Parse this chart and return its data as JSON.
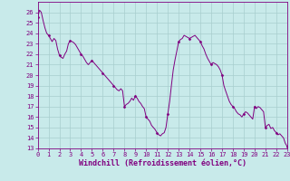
{
  "x": [
    0,
    0.17,
    0.33,
    0.5,
    0.67,
    0.83,
    1,
    1.17,
    1.33,
    1.5,
    1.67,
    1.83,
    2,
    2.17,
    2.33,
    2.5,
    2.67,
    2.83,
    3,
    3.17,
    3.33,
    3.5,
    3.67,
    3.83,
    4,
    4.17,
    4.33,
    4.5,
    4.67,
    4.83,
    5,
    5.17,
    5.33,
    5.5,
    5.67,
    5.83,
    6,
    6.17,
    6.33,
    6.5,
    6.67,
    6.83,
    7,
    7.17,
    7.33,
    7.5,
    7.67,
    7.83,
    8,
    8.17,
    8.33,
    8.5,
    8.67,
    8.83,
    9,
    9.17,
    9.33,
    9.5,
    9.67,
    9.83,
    10,
    10.17,
    10.33,
    10.5,
    10.67,
    10.83,
    11,
    11.17,
    11.33,
    11.5,
    11.67,
    11.83,
    12,
    12.17,
    12.33,
    12.5,
    12.67,
    12.83,
    13,
    13.17,
    13.33,
    13.5,
    13.67,
    13.83,
    14,
    14.17,
    14.33,
    14.5,
    14.67,
    14.83,
    15,
    15.17,
    15.33,
    15.5,
    15.67,
    15.83,
    16,
    16.17,
    16.33,
    16.5,
    16.67,
    16.83,
    17,
    17.17,
    17.33,
    17.5,
    17.67,
    17.83,
    18,
    18.17,
    18.33,
    18.5,
    18.67,
    18.83,
    19,
    19.17,
    19.33,
    19.5,
    19.67,
    19.83,
    20,
    20.17,
    20.33,
    20.5,
    20.67,
    20.83,
    21,
    21.17,
    21.33,
    21.5,
    21.67,
    21.83,
    22,
    22.17,
    22.33,
    22.5,
    22.67,
    22.83,
    23
  ],
  "y": [
    25.5,
    26.2,
    26.0,
    25.2,
    24.5,
    24.0,
    23.8,
    23.5,
    23.2,
    23.5,
    23.3,
    22.5,
    21.9,
    21.7,
    21.6,
    22.0,
    22.3,
    23.0,
    23.3,
    23.2,
    23.1,
    22.9,
    22.6,
    22.3,
    22.0,
    21.8,
    21.5,
    21.2,
    21.0,
    21.2,
    21.4,
    21.2,
    21.0,
    20.8,
    20.6,
    20.4,
    20.2,
    20.0,
    19.8,
    19.6,
    19.4,
    19.2,
    19.0,
    18.8,
    18.6,
    18.5,
    18.7,
    18.5,
    17.0,
    17.2,
    17.3,
    17.5,
    17.8,
    17.6,
    18.0,
    17.8,
    17.5,
    17.3,
    17.0,
    16.8,
    16.0,
    15.8,
    15.6,
    15.2,
    15.0,
    14.8,
    14.5,
    14.3,
    14.2,
    14.4,
    14.5,
    15.0,
    16.3,
    17.5,
    19.0,
    20.5,
    21.5,
    22.3,
    23.2,
    23.4,
    23.5,
    23.8,
    23.7,
    23.6,
    23.5,
    23.6,
    23.7,
    23.8,
    23.6,
    23.4,
    23.2,
    22.8,
    22.5,
    22.0,
    21.6,
    21.3,
    21.0,
    21.2,
    21.1,
    21.0,
    20.8,
    20.5,
    20.0,
    19.0,
    18.5,
    18.0,
    17.5,
    17.2,
    17.0,
    16.8,
    16.5,
    16.3,
    16.2,
    16.0,
    16.3,
    16.5,
    16.4,
    16.2,
    16.0,
    15.8,
    17.0,
    16.8,
    17.0,
    16.9,
    16.7,
    16.5,
    15.0,
    15.2,
    15.3,
    14.9,
    15.0,
    14.7,
    14.5,
    14.3,
    14.4,
    14.2,
    14.0,
    13.5,
    13.2
  ],
  "line_color": "#800080",
  "marker_color": "#800080",
  "bg_color": "#c8eaea",
  "grid_color": "#a8cece",
  "axis_color": "#800080",
  "xlabel": "Windchill (Refroidissement éolien,°C)",
  "ylim": [
    13,
    27
  ],
  "xlim": [
    0,
    23
  ],
  "yticks": [
    13,
    14,
    15,
    16,
    17,
    18,
    19,
    20,
    21,
    22,
    23,
    24,
    25,
    26
  ],
  "xticks": [
    0,
    1,
    2,
    3,
    4,
    5,
    6,
    7,
    8,
    9,
    10,
    11,
    12,
    13,
    14,
    15,
    16,
    17,
    18,
    19,
    20,
    21,
    22,
    23
  ],
  "marker_every": 6,
  "tick_fontsize": 5.0,
  "xlabel_fontsize": 6.0
}
